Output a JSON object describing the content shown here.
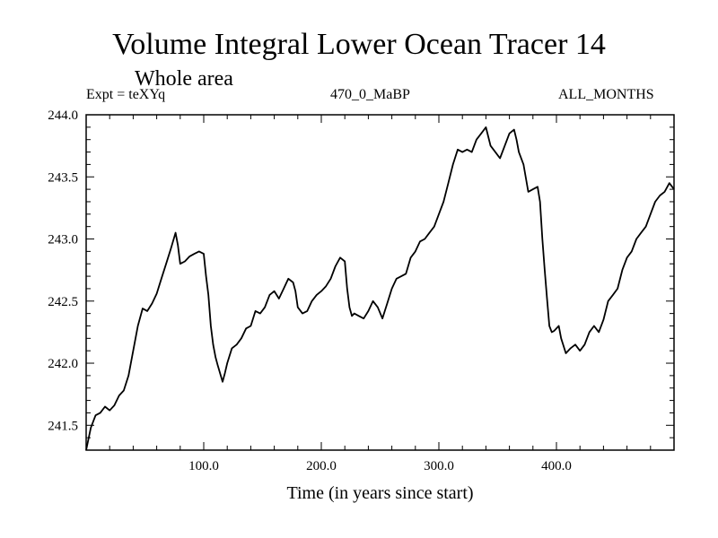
{
  "header": {
    "title": "Volume Integral Lower Ocean Tracer 14",
    "subtitle": "Whole area",
    "left_info": "Expt = teXYq",
    "center_info": "470_0_MaBP",
    "right_info": "ALL_MONTHS"
  },
  "chart_data": {
    "type": "line",
    "title": "Volume Integral Lower Ocean Tracer 14",
    "subtitle": "Whole area",
    "xlabel": "Time (in years since start)",
    "ylabel": "",
    "xlim": [
      0,
      500
    ],
    "ylim": [
      241.3,
      244.0
    ],
    "x_ticks": [
      100,
      200,
      300,
      400
    ],
    "x_tick_labels": [
      "100.0",
      "200.0",
      "300.0",
      "400.0"
    ],
    "y_ticks": [
      241.5,
      242.0,
      242.5,
      243.0,
      243.5,
      244.0
    ],
    "y_tick_labels": [
      "241.5",
      "242.0",
      "242.5",
      "243.0",
      "243.5",
      "244.0"
    ],
    "grid": false,
    "series": [
      {
        "color": "#000000",
        "x": [
          0,
          4,
          8,
          12,
          16,
          20,
          24,
          28,
          32,
          36,
          40,
          44,
          48,
          52,
          56,
          60,
          64,
          68,
          72,
          76,
          78,
          80,
          84,
          88,
          92,
          96,
          100,
          102,
          104,
          106,
          108,
          110,
          112,
          116,
          118,
          120,
          124,
          128,
          132,
          136,
          140,
          144,
          148,
          152,
          156,
          160,
          164,
          168,
          172,
          176,
          178,
          180,
          184,
          188,
          192,
          196,
          200,
          204,
          208,
          212,
          216,
          220,
          222,
          224,
          226,
          228,
          232,
          236,
          240,
          244,
          248,
          252,
          256,
          260,
          264,
          268,
          272,
          276,
          280,
          284,
          288,
          292,
          296,
          300,
          304,
          308,
          312,
          316,
          320,
          324,
          328,
          332,
          336,
          340,
          344,
          348,
          352,
          356,
          360,
          364,
          366,
          368,
          372,
          376,
          380,
          384,
          386,
          388,
          390,
          392,
          394,
          396,
          398,
          400,
          402,
          404,
          408,
          412,
          416,
          420,
          424,
          428,
          432,
          436,
          440,
          444,
          448,
          452,
          456,
          460,
          464,
          468,
          472,
          476,
          480,
          484,
          488,
          492,
          496,
          500
        ],
        "y": [
          241.3,
          241.48,
          241.58,
          241.6,
          241.65,
          241.62,
          241.66,
          241.74,
          241.78,
          241.9,
          242.1,
          242.3,
          242.44,
          242.42,
          242.48,
          242.56,
          242.68,
          242.8,
          242.92,
          243.05,
          242.95,
          242.8,
          242.82,
          242.86,
          242.88,
          242.9,
          242.88,
          242.7,
          242.55,
          242.3,
          242.15,
          242.05,
          241.98,
          241.85,
          241.92,
          242.0,
          242.12,
          242.15,
          242.2,
          242.28,
          242.3,
          242.42,
          242.4,
          242.45,
          242.55,
          242.58,
          242.52,
          242.6,
          242.68,
          242.65,
          242.58,
          242.45,
          242.4,
          242.42,
          242.5,
          242.55,
          242.58,
          242.62,
          242.68,
          242.78,
          242.85,
          242.82,
          242.6,
          242.45,
          242.38,
          242.4,
          242.38,
          242.36,
          242.42,
          242.5,
          242.45,
          242.36,
          242.48,
          242.6,
          242.68,
          242.7,
          242.72,
          242.85,
          242.9,
          242.98,
          243.0,
          243.05,
          243.1,
          243.2,
          243.3,
          243.45,
          243.6,
          243.72,
          243.7,
          243.72,
          243.7,
          243.8,
          243.85,
          243.9,
          243.75,
          243.7,
          243.65,
          243.75,
          243.85,
          243.88,
          243.8,
          243.7,
          243.6,
          243.38,
          243.4,
          243.42,
          243.3,
          243.0,
          242.75,
          242.52,
          242.3,
          242.25,
          242.26,
          242.28,
          242.3,
          242.2,
          242.08,
          242.12,
          242.15,
          242.1,
          242.15,
          242.25,
          242.3,
          242.25,
          242.35,
          242.5,
          242.55,
          242.6,
          242.75,
          242.85,
          242.9,
          243.0,
          243.05,
          243.1,
          243.2,
          243.3,
          243.35,
          243.38,
          243.45,
          243.4
        ]
      }
    ]
  }
}
